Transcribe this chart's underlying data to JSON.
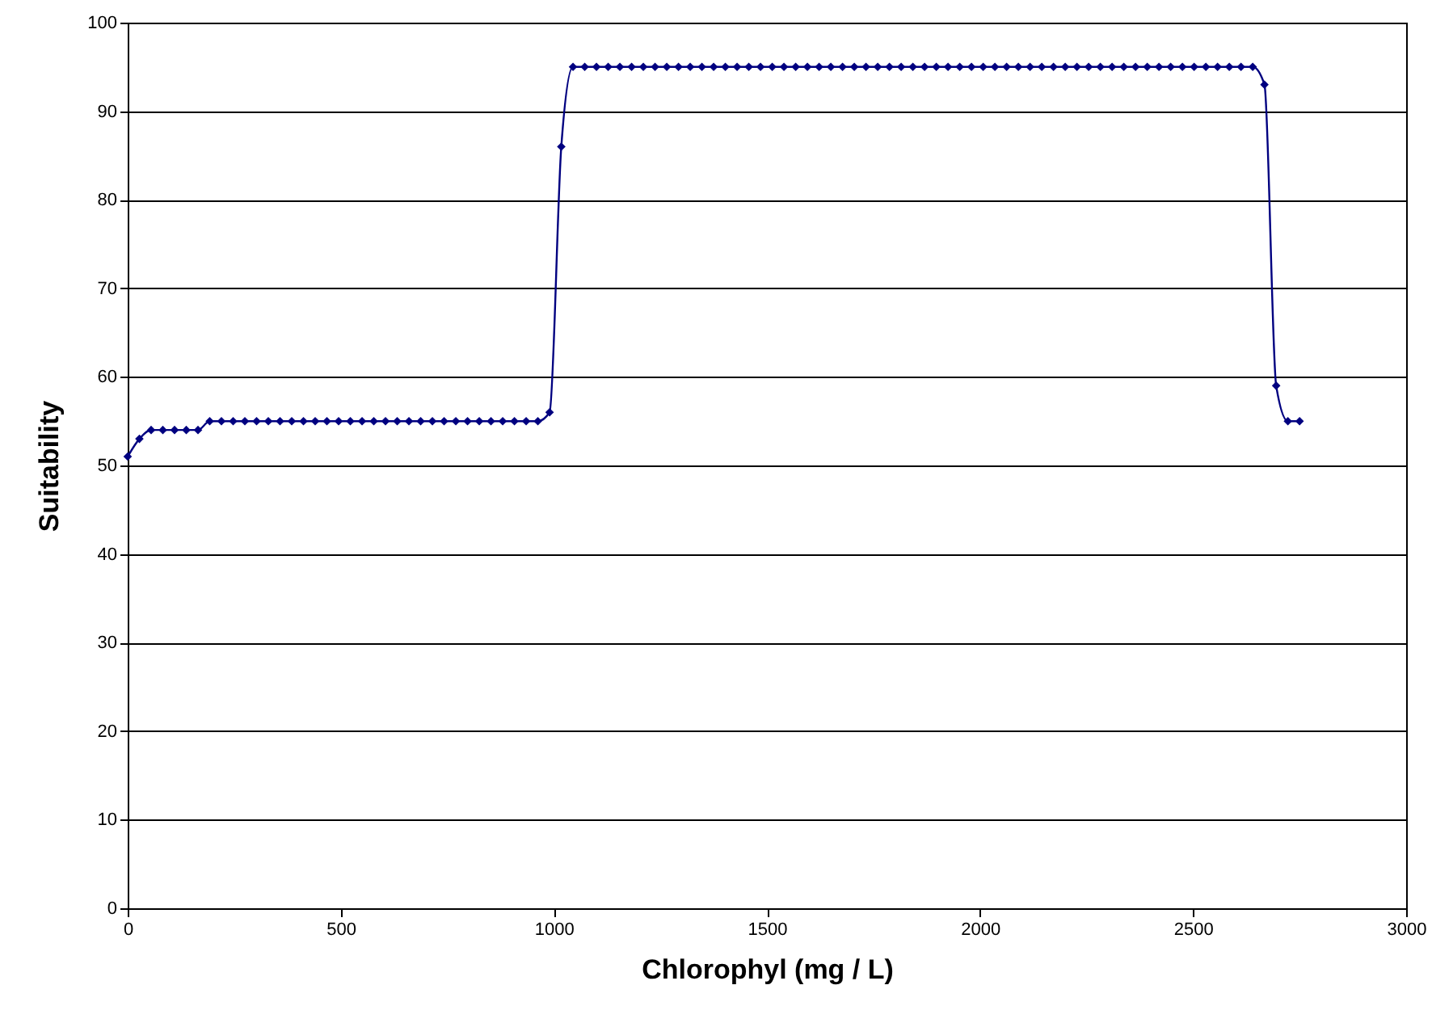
{
  "chart_data": {
    "type": "line",
    "xlabel": "Chlorophyl (mg / L)",
    "ylabel": "Suitability",
    "x": [
      0,
      27.5,
      55,
      82.5,
      110,
      137.5,
      165,
      192.5,
      220,
      247.5,
      275,
      302.5,
      330,
      357.5,
      385,
      412.5,
      440,
      467.5,
      495,
      522.5,
      550,
      577.5,
      605,
      632.5,
      660,
      687.5,
      715,
      742.5,
      770,
      797.5,
      825,
      852.5,
      880,
      907.5,
      935,
      962.5,
      990,
      1017.5,
      1045,
      1072.5,
      1100,
      1127.5,
      1155,
      1182.5,
      1210,
      1237.5,
      1265,
      1292.5,
      1320,
      1347.5,
      1375,
      1402.5,
      1430,
      1457.5,
      1485,
      1512.5,
      1540,
      1567.5,
      1595,
      1622.5,
      1650,
      1677.5,
      1705,
      1732.5,
      1760,
      1787.5,
      1815,
      1842.5,
      1870,
      1897.5,
      1925,
      1952.5,
      1980,
      2007.5,
      2035,
      2062.5,
      2090,
      2117.5,
      2145,
      2172.5,
      2200,
      2227.5,
      2255,
      2282.5,
      2310,
      2337.5,
      2365,
      2392.5,
      2420,
      2447.5,
      2475,
      2502.5,
      2530,
      2557.5,
      2585,
      2612.5,
      2640,
      2667.5,
      2695,
      2722.5,
      2750
    ],
    "series": [
      {
        "color": "#000080",
        "values": [
          51,
          53,
          54,
          54,
          54,
          54,
          54,
          55,
          55,
          55,
          55,
          55,
          55,
          55,
          55,
          55,
          55,
          55,
          55,
          55,
          55,
          55,
          55,
          55,
          55,
          55,
          55,
          55,
          55,
          55,
          55,
          55,
          55,
          55,
          55,
          55,
          56,
          86,
          95,
          95,
          95,
          95,
          95,
          95,
          95,
          95,
          95,
          95,
          95,
          95,
          95,
          95,
          95,
          95,
          95,
          95,
          95,
          95,
          95,
          95,
          95,
          95,
          95,
          95,
          95,
          95,
          95,
          95,
          95,
          95,
          95,
          95,
          95,
          95,
          95,
          95,
          95,
          95,
          95,
          95,
          95,
          95,
          95,
          95,
          95,
          95,
          95,
          95,
          95,
          95,
          95,
          95,
          95,
          95,
          95,
          95,
          95,
          93,
          59,
          55,
          55
        ]
      }
    ],
    "xlim": [
      0,
      3000
    ],
    "xticks": [
      0,
      500,
      1000,
      1500,
      2000,
      2500,
      3000
    ],
    "ylim": [
      0,
      100
    ],
    "yticks": [
      0,
      10,
      20,
      30,
      40,
      50,
      60,
      70,
      80,
      90,
      100
    ],
    "grid": "y",
    "marker": "diamond",
    "line_style": "solid"
  }
}
